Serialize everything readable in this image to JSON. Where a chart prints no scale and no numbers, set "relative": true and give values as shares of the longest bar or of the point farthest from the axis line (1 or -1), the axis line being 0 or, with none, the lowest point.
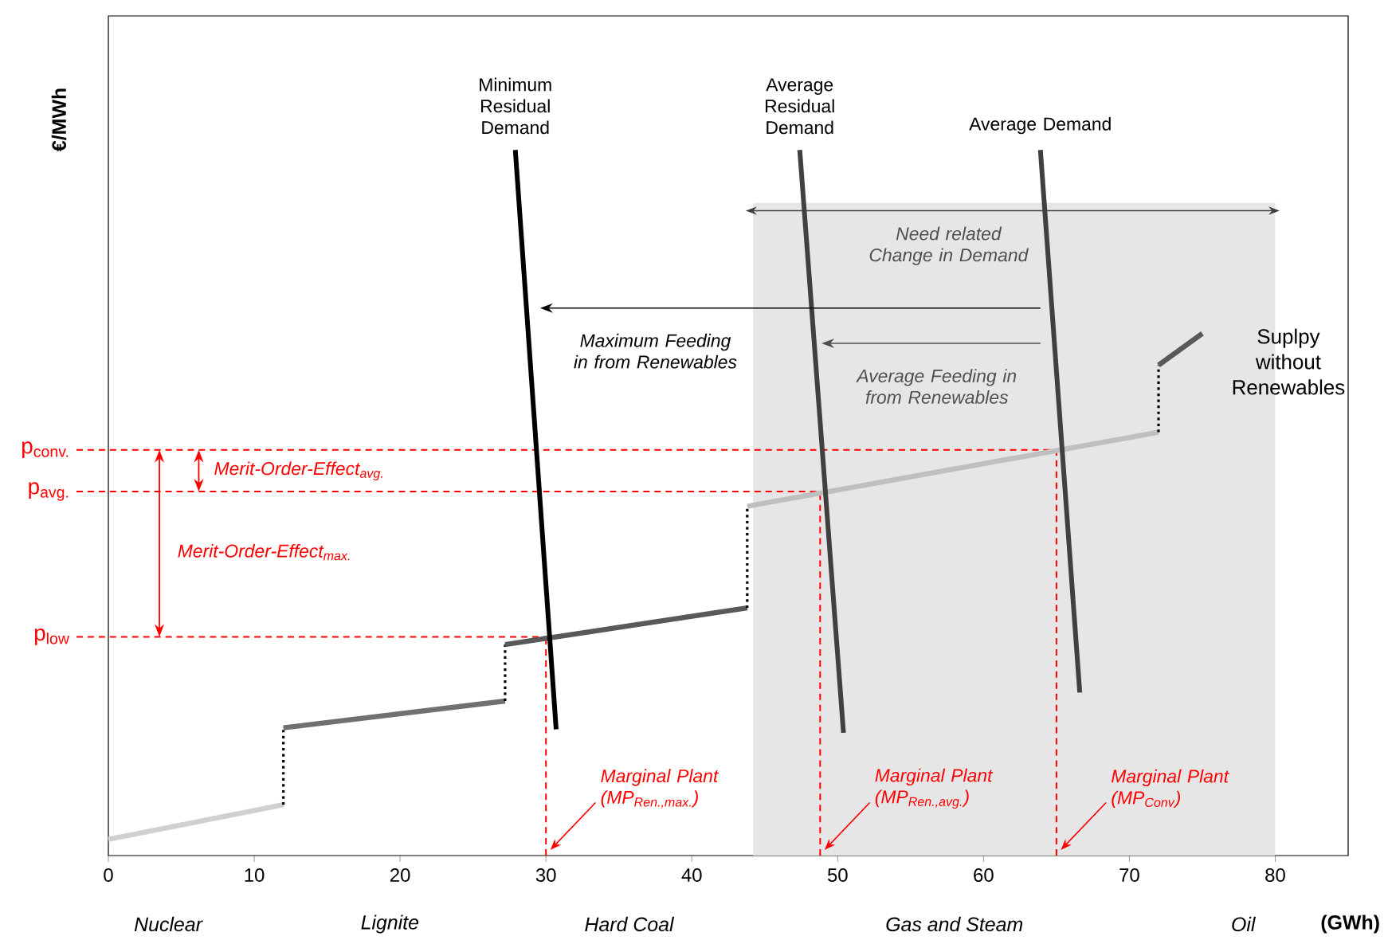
{
  "chart_data": {
    "type": "line",
    "relative": true,
    "xlabel": "(GWh)",
    "ylabel": "€/MWh",
    "xlim": [
      0,
      85
    ],
    "xticks": [
      0,
      10,
      20,
      30,
      40,
      50,
      60,
      70,
      80
    ],
    "series": [
      {
        "color": "#d0d0d0",
        "x": [
          0,
          12
        ],
        "values": [
          0.023,
          0.072
        ]
      },
      {
        "color": "#000000",
        "line_style": "dotted",
        "x": [
          12,
          12
        ],
        "values": [
          0.072,
          0.181
        ]
      },
      {
        "color": "#707070",
        "x": [
          12,
          27.2
        ],
        "values": [
          0.181,
          0.219
        ]
      },
      {
        "color": "#000000",
        "line_style": "dotted",
        "x": [
          27.2,
          27.2
        ],
        "values": [
          0.219,
          0.299
        ]
      },
      {
        "color": "#595959",
        "x": [
          27.2,
          43.8
        ],
        "values": [
          0.299,
          0.351
        ]
      },
      {
        "color": "#000000",
        "line_style": "dotted",
        "x": [
          43.8,
          43.8
        ],
        "values": [
          0.351,
          0.495
        ]
      },
      {
        "color": "#bfbfbf",
        "x": [
          43.8,
          72
        ],
        "values": [
          0.495,
          0.6
        ]
      },
      {
        "color": "#000000",
        "line_style": "dotted",
        "x": [
          72,
          72
        ],
        "values": [
          0.6,
          0.695
        ]
      },
      {
        "color": "#595959",
        "x": [
          72,
          75
        ],
        "values": [
          0.695,
          0.74
        ]
      },
      {
        "name": "Minimum Residual Demand",
        "color": "#000000",
        "x": [
          27.9,
          30.7
        ],
        "values": [
          1.0,
          0.179
        ]
      },
      {
        "name": "Average Residual Demand",
        "color": "#404040",
        "x": [
          47.4,
          50.4
        ],
        "values": [
          1.0,
          0.174
        ]
      },
      {
        "name": "Average Demand",
        "color": "#404040",
        "x": [
          63.9,
          66.6
        ],
        "values": [
          1.0,
          0.231
        ]
      }
    ],
    "ref_lines": [
      {
        "axis": "y",
        "value": 0.575,
        "label": "p$_{conv.}$",
        "color": "#ff0000",
        "line_style": "dashed"
      },
      {
        "axis": "y",
        "value": 0.516,
        "label": "p$_{avg.}$",
        "color": "#ff0000",
        "line_style": "dashed"
      },
      {
        "axis": "y",
        "value": 0.31,
        "label": "p$_{low}$",
        "color": "#ff0000",
        "line_style": "dashed"
      },
      {
        "axis": "x",
        "value": 65,
        "label": "Marginal Plant (MP$_{Conv}$)",
        "color": "#ff0000",
        "line_style": "dashed"
      },
      {
        "axis": "x",
        "value": 48.8,
        "label": "Marginal Plant (MP$_{Ren.,avg.}$)",
        "color": "#ff0000",
        "line_style": "dashed"
      },
      {
        "axis": "x",
        "value": 30,
        "label": "Marginal Plant (MP$_{Ren.,max.}$)",
        "color": "#ff0000",
        "line_style": "dashed"
      }
    ],
    "bands": [
      {
        "axis": "x",
        "from": 44.2,
        "to": 80,
        "label": "Need related Change in Demand",
        "color": "#e6e6e6"
      }
    ],
    "annotations": [
      "Maximum Feeding in from Renewables",
      "Average Feeding in from Renewables",
      "Merit-Order-Effect$_{avg.}$",
      "Merit-Order-Effect$_{max.}$",
      "Suplpy without Renewables",
      "Nuclear",
      "Lignite",
      "Hard Coal",
      "Gas and Steam",
      "Oil"
    ]
  }
}
